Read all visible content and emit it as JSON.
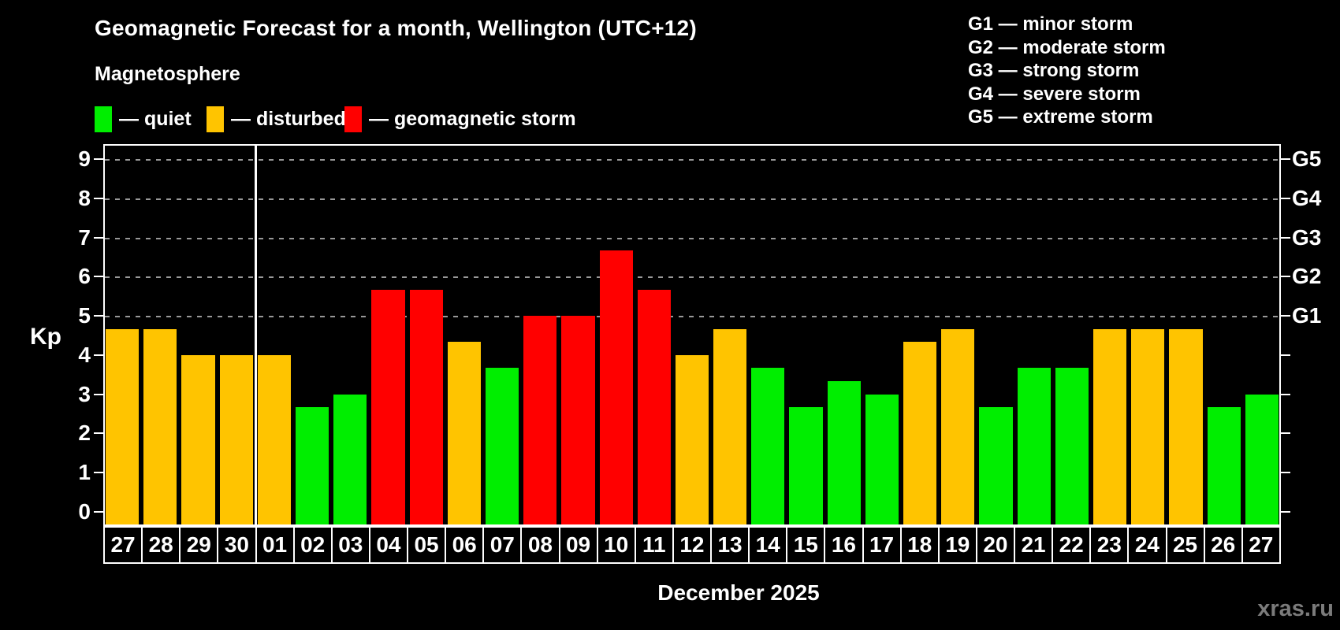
{
  "title": "Geomagnetic Forecast for a month, Wellington (UTC+12)",
  "subtitle": "Magnetosphere",
  "legend": {
    "quiet": "— quiet",
    "disturbed": "— disturbed",
    "storm": "— geomagnetic storm"
  },
  "g_scale": [
    "G1 — minor storm",
    "G2 — moderate storm",
    "G3 — strong storm",
    "G4 — severe storm",
    "G5 — extreme storm"
  ],
  "axis": {
    "kp_label": "Kp",
    "left_ticks": [
      0,
      1,
      2,
      3,
      4,
      5,
      6,
      7,
      8,
      9
    ]
  },
  "x_axis": {
    "month_label": "December 2025"
  },
  "watermark": "xras.ru",
  "colors": {
    "quiet": "#00ee00",
    "disturbed": "#ffc400",
    "storm": "#ff0000",
    "grid": "#999999",
    "axis": "#ffffff",
    "background": "#000000",
    "watermark": "#7b7b7b"
  },
  "chart_data": {
    "type": "bar",
    "title": "Geomagnetic Forecast for a month, Wellington (UTC+12)",
    "xlabel": "December 2025",
    "ylabel": "Kp",
    "ylim": [
      0,
      9
    ],
    "grid": "dashed horizontal lines at Kp 5-9 (G1-G5 levels)",
    "legend_position": "top-left",
    "categories": [
      "27",
      "28",
      "29",
      "30",
      "01",
      "02",
      "03",
      "04",
      "05",
      "06",
      "07",
      "08",
      "09",
      "10",
      "11",
      "12",
      "13",
      "14",
      "15",
      "16",
      "17",
      "18",
      "19",
      "20",
      "21",
      "22",
      "23",
      "24",
      "25",
      "26",
      "27"
    ],
    "values": [
      4.67,
      4.67,
      4,
      4,
      4,
      2.67,
      3,
      5.67,
      5.67,
      4.33,
      3.67,
      5,
      5,
      6.67,
      5.67,
      4,
      4.67,
      3.67,
      2.67,
      3.33,
      3,
      4.33,
      4.67,
      2.67,
      3.67,
      3.67,
      4.67,
      4.67,
      4.67,
      2.67,
      3
    ],
    "states": [
      "disturbed",
      "disturbed",
      "disturbed",
      "disturbed",
      "disturbed",
      "quiet",
      "quiet",
      "storm",
      "storm",
      "disturbed",
      "quiet",
      "storm",
      "storm",
      "storm",
      "storm",
      "disturbed",
      "disturbed",
      "quiet",
      "quiet",
      "quiet",
      "quiet",
      "disturbed",
      "disturbed",
      "quiet",
      "quiet",
      "quiet",
      "disturbed",
      "disturbed",
      "disturbed",
      "quiet",
      "quiet"
    ],
    "month_separator_after_index": 3,
    "gridlines_kp": [
      5,
      6,
      7,
      8,
      9
    ],
    "right_axis_labels": {
      "5": "G1",
      "6": "G2",
      "7": "G3",
      "8": "G4",
      "9": "G5"
    }
  }
}
